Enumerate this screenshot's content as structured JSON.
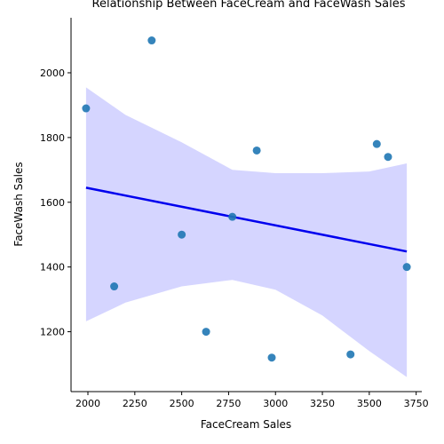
{
  "chart_data": {
    "type": "scatter",
    "title": "Relationship Between FaceCream and FaceWash Sales",
    "xlabel": "FaceCream Sales",
    "ylabel": "FaceWash Sales",
    "xlim": [
      1910,
      3780
    ],
    "ylim": [
      1015,
      2170
    ],
    "x_ticks": [
      2000,
      2250,
      2500,
      2750,
      3000,
      3250,
      3500,
      3750
    ],
    "y_ticks": [
      1200,
      1400,
      1600,
      1800,
      2000
    ],
    "grid": false,
    "legend": "none",
    "points": {
      "x": [
        1990,
        2340,
        2900,
        3540,
        3600,
        2770,
        2500,
        3700,
        2140,
        2630,
        2980,
        3400
      ],
      "y": [
        1890,
        2100,
        1760,
        1780,
        1740,
        1555,
        1500,
        1400,
        1340,
        1200,
        1120,
        1130
      ]
    },
    "regression": {
      "x": [
        1990,
        3700
      ],
      "y": [
        1645,
        1448
      ]
    },
    "confidence_band": {
      "x": [
        1990,
        2200,
        2500,
        2770,
        3000,
        3250,
        3500,
        3700
      ],
      "upper": [
        1955,
        1870,
        1785,
        1700,
        1690,
        1690,
        1695,
        1720
      ],
      "lower": [
        1232,
        1290,
        1340,
        1360,
        1330,
        1250,
        1140,
        1060
      ]
    },
    "colors": {
      "points": "#1f77b4",
      "line": "#0000ee",
      "band": "#b3b3ff"
    }
  }
}
